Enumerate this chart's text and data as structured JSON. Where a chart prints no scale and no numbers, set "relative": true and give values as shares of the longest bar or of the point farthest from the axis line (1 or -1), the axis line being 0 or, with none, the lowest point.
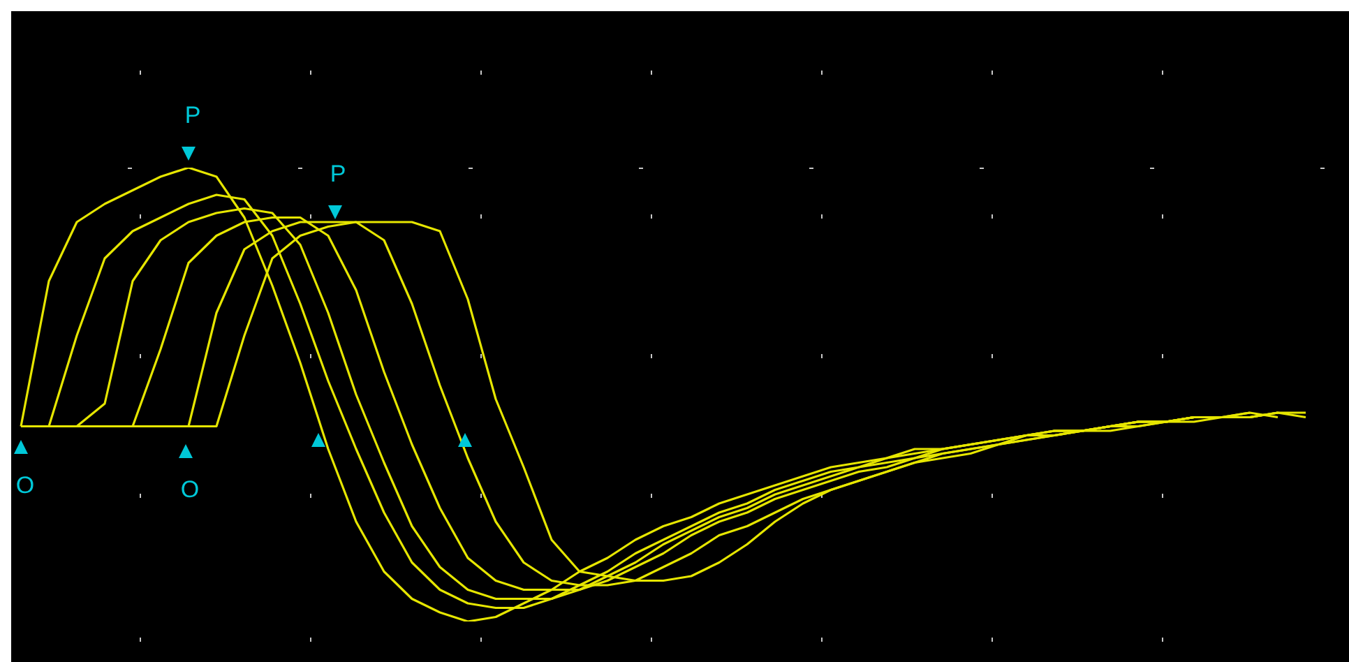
{
  "chart_data": {
    "type": "line",
    "relative": true,
    "grid": true,
    "marker": "none",
    "categories": [
      null,
      null,
      null,
      null,
      null,
      null,
      null,
      null,
      null,
      null,
      null,
      null,
      null,
      null,
      null,
      null,
      null,
      null,
      null,
      null,
      null,
      null,
      null,
      null,
      null,
      null,
      null,
      null,
      null,
      null,
      null,
      null,
      null,
      null,
      null,
      null,
      null,
      null,
      null,
      null,
      null,
      null,
      null,
      null,
      null,
      null,
      null
    ],
    "annotations": [
      "P",
      "P",
      "O",
      "O"
    ],
    "series": [
      {
        "color": "#e6e600",
        "values": [
          0.43,
          0.75,
          0.88,
          0.92,
          0.95,
          0.98,
          1.0,
          0.98,
          0.89,
          0.74,
          0.57,
          0.38,
          0.22,
          0.11,
          0.05,
          0.02,
          0,
          0.01,
          0.04,
          0.07,
          0.11,
          0.14,
          0.18,
          0.21,
          0.23,
          0.26,
          0.28,
          0.3,
          0.32,
          0.34,
          0.35,
          0.36,
          0.38,
          0.38,
          0.39,
          0.4,
          0.41,
          0.42,
          0.42,
          0.43,
          0.44,
          0.44,
          0.45,
          0.45,
          0.45,
          0.46,
          0.46
        ]
      },
      {
        "color": "#e6e600",
        "values": [
          0.43,
          0.43,
          0.63,
          0.8,
          0.86,
          0.89,
          0.92,
          0.94,
          0.93,
          0.85,
          0.7,
          0.53,
          0.38,
          0.24,
          0.13,
          0.07,
          0.04,
          0.03,
          0.03,
          0.05,
          0.08,
          0.11,
          0.15,
          0.18,
          0.21,
          0.24,
          0.26,
          0.29,
          0.31,
          0.33,
          0.34,
          0.36,
          0.37,
          0.38,
          0.39,
          0.4,
          0.41,
          0.42,
          0.42,
          0.43,
          0.44,
          0.44,
          0.45,
          0.45,
          0.45,
          0.46,
          0.45
        ]
      },
      {
        "color": "#e6e600",
        "values": [
          0.43,
          0.43,
          0.43,
          0.48,
          0.75,
          0.84,
          0.88,
          0.9,
          0.91,
          0.9,
          0.83,
          0.68,
          0.5,
          0.35,
          0.21,
          0.12,
          0.07,
          0.05,
          0.05,
          0.05,
          0.07,
          0.1,
          0.13,
          0.17,
          0.2,
          0.23,
          0.25,
          0.28,
          0.3,
          0.32,
          0.34,
          0.35,
          0.36,
          0.38,
          0.39,
          0.4,
          0.41,
          0.41,
          0.42,
          0.43,
          0.44,
          0.44,
          0.45,
          0.45,
          0.45,
          0.46,
          null
        ]
      },
      {
        "color": "#e6e600",
        "values": [
          0.43,
          0.43,
          0.43,
          0.43,
          0.43,
          0.6,
          0.79,
          0.85,
          0.88,
          0.89,
          0.89,
          0.85,
          0.73,
          0.55,
          0.39,
          0.25,
          0.14,
          0.09,
          0.07,
          0.07,
          0.07,
          0.09,
          0.12,
          0.15,
          0.19,
          0.22,
          0.24,
          0.27,
          0.29,
          0.31,
          0.33,
          0.34,
          0.36,
          0.37,
          0.38,
          0.39,
          0.4,
          0.41,
          0.42,
          0.43,
          0.43,
          0.44,
          0.45,
          0.45,
          0.46,
          0.45,
          null
        ]
      },
      {
        "color": "#e6e600",
        "values": [
          0.43,
          0.43,
          0.43,
          0.43,
          0.43,
          0.43,
          0.43,
          0.68,
          0.82,
          0.86,
          0.88,
          0.88,
          0.88,
          0.84,
          0.7,
          0.52,
          0.36,
          0.22,
          0.13,
          0.09,
          0.08,
          0.08,
          0.09,
          0.12,
          0.15,
          0.19,
          0.21,
          0.24,
          0.27,
          0.29,
          0.31,
          0.33,
          0.35,
          0.36,
          0.37,
          0.39,
          0.4,
          0.41,
          0.42,
          0.42,
          0.43,
          0.44,
          0.44,
          0.45,
          0.46,
          null,
          null
        ]
      },
      {
        "color": "#e6e600",
        "values": [
          0.43,
          0.43,
          0.43,
          0.43,
          0.43,
          0.43,
          0.43,
          0.43,
          0.63,
          0.8,
          0.85,
          0.87,
          0.88,
          0.88,
          0.88,
          0.86,
          0.71,
          0.49,
          0.34,
          0.18,
          0.11,
          0.1,
          0.09,
          0.09,
          0.1,
          0.13,
          0.17,
          0.22,
          0.26,
          0.29,
          0.31,
          0.33,
          0.35,
          0.37,
          0.38,
          0.39,
          0.41,
          0.42,
          0.42,
          0.43,
          0.44,
          0.44,
          0.45,
          0.45,
          0.45,
          null,
          null
        ]
      }
    ]
  }
}
